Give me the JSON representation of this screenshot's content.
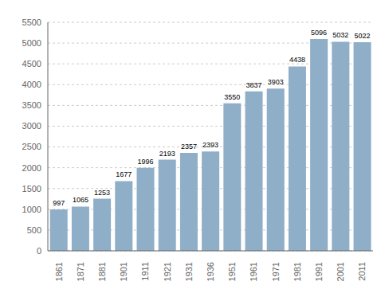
{
  "chart_data": {
    "type": "bar",
    "categories": [
      "1861",
      "1871",
      "1881",
      "1901",
      "1911",
      "1921",
      "1931",
      "1936",
      "1951",
      "1961",
      "1971",
      "1981",
      "1991",
      "2001",
      "2011"
    ],
    "values": [
      997,
      1065,
      1253,
      1677,
      1996,
      2193,
      2357,
      2393,
      3550,
      3837,
      3903,
      4438,
      5096,
      5032,
      5022
    ],
    "color": "#8FAEC8",
    "ylim": [
      0,
      5500
    ],
    "yticks": [
      0,
      500,
      1000,
      1500,
      2000,
      2500,
      3000,
      3500,
      4000,
      4500,
      5000,
      5500
    ],
    "grid": true,
    "data_labels": true
  }
}
